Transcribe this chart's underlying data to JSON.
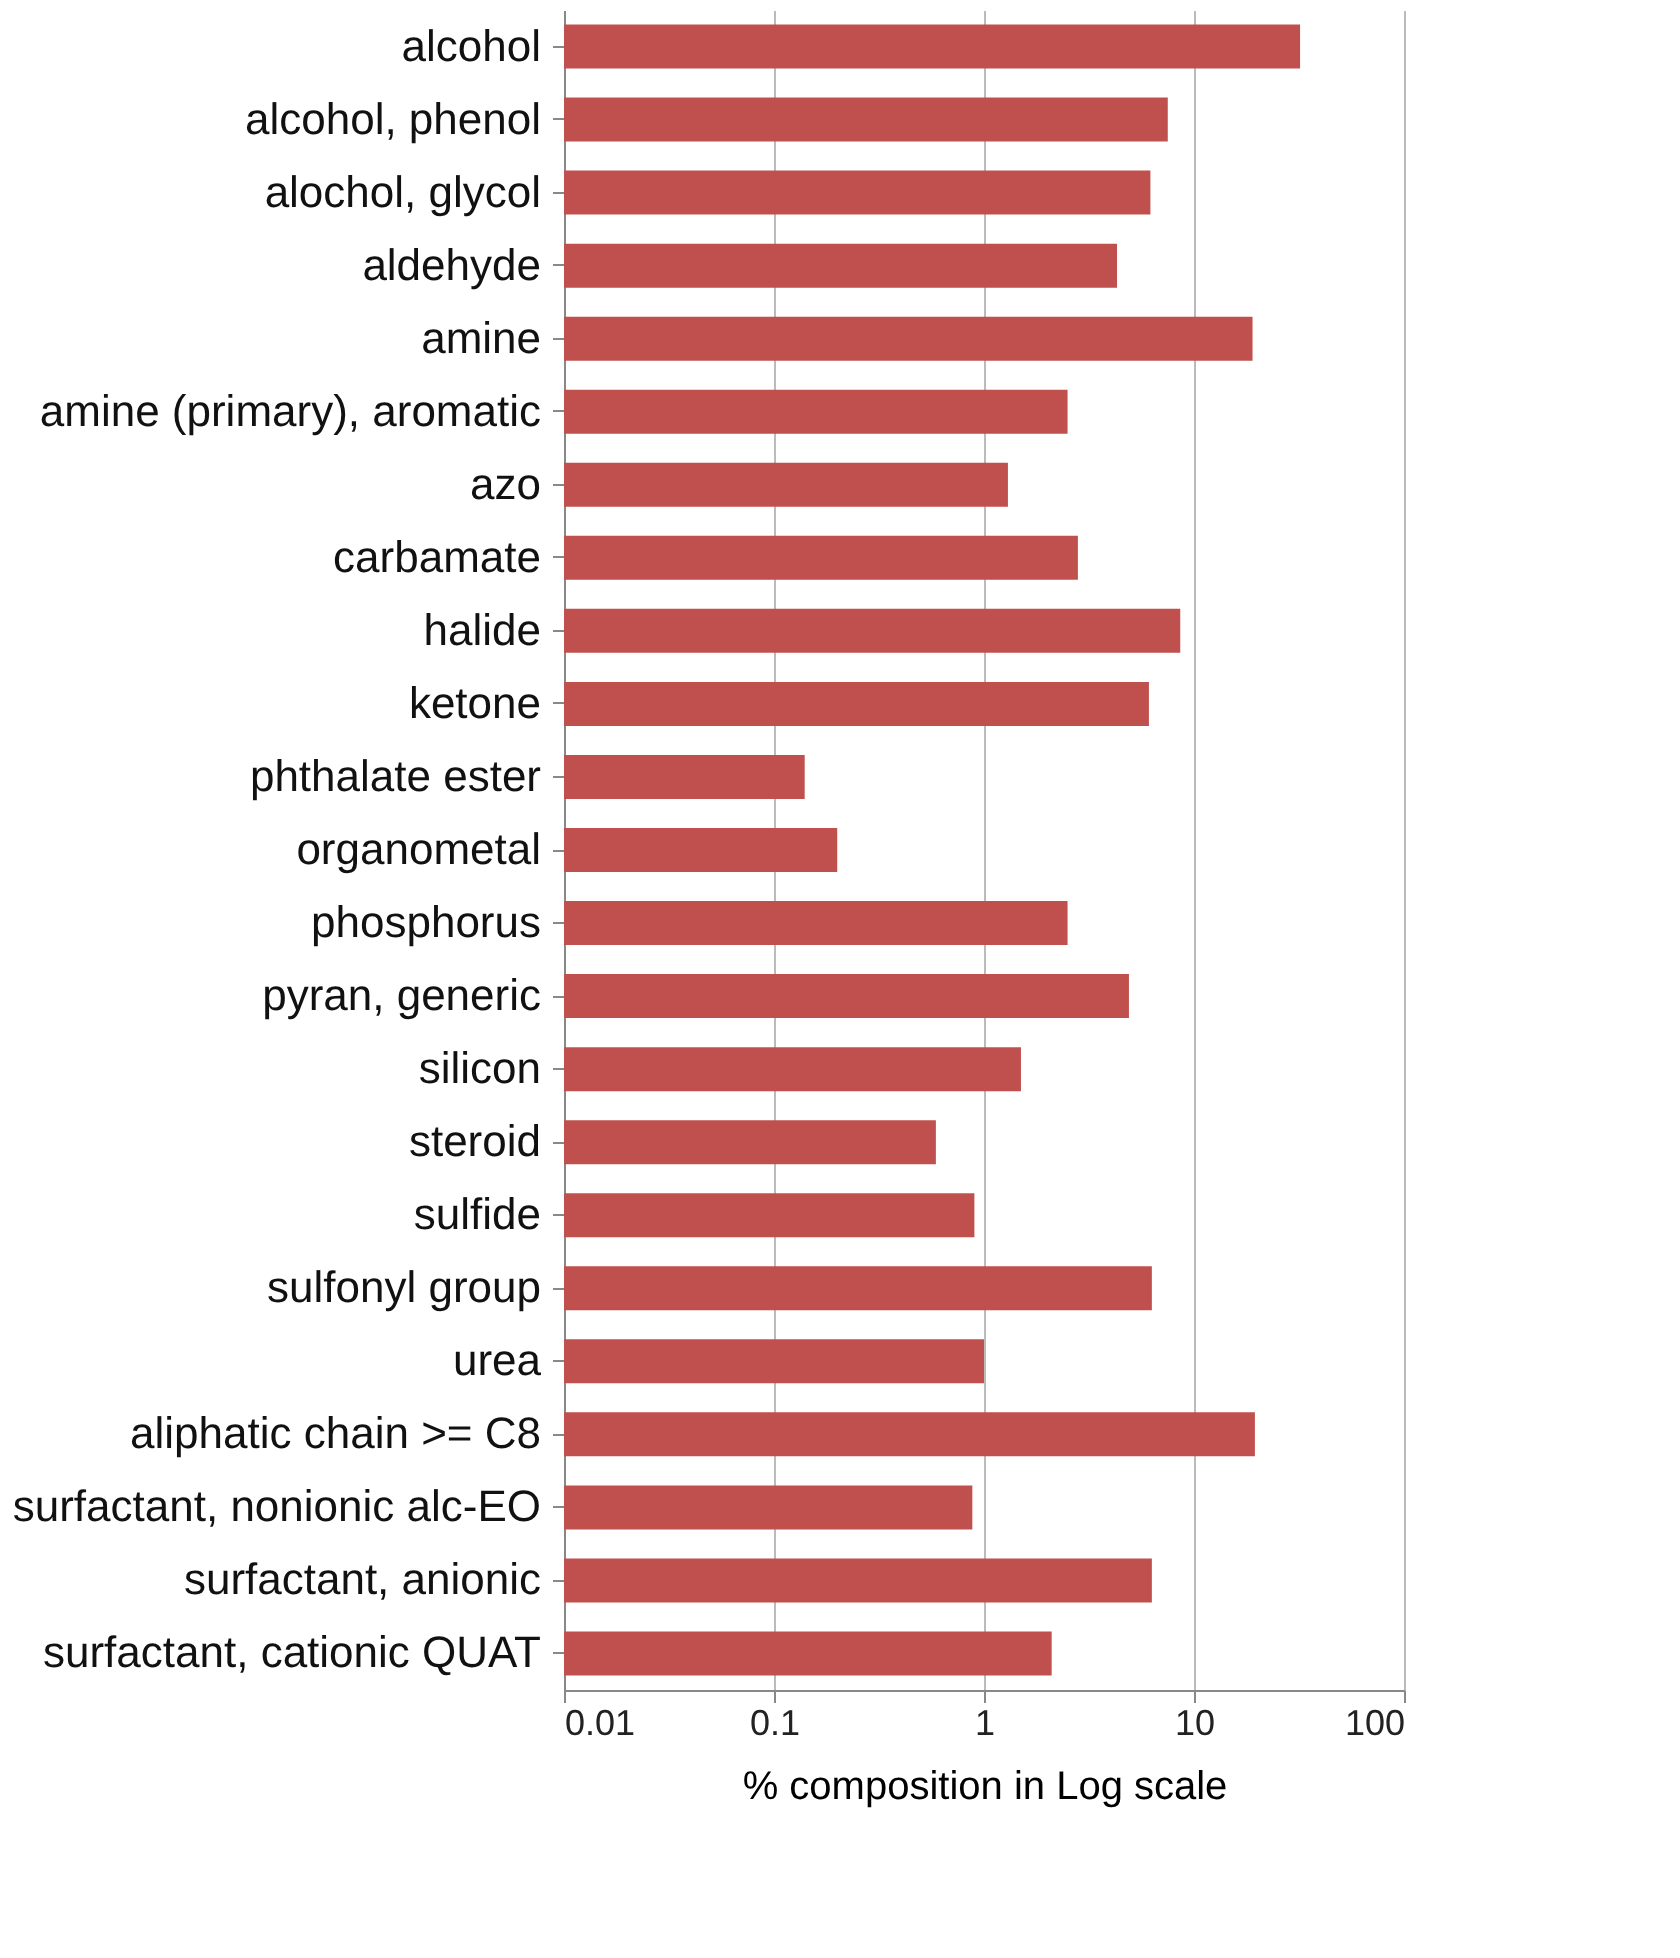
{
  "chart_data": {
    "type": "bar",
    "orientation": "horizontal",
    "log": "x",
    "grid": "x",
    "xlabel": "% composition in Log scale",
    "color": "#c0504d",
    "categories": [
      "alcohol",
      "alcohol, phenol",
      "alochol, glycol",
      "aldehyde",
      "amine",
      "amine (primary), aromatic",
      "azo",
      "carbamate",
      "halide",
      "ketone",
      "phthalate ester",
      "organometal",
      "phosphorus",
      "pyran, generic",
      "silicon",
      "steroid",
      "sulfide",
      "sulfonyl group",
      "urea",
      "aliphatic chain >= C8",
      "surfactant, nonionic alc-EO",
      "surfactant, anionic",
      "surfactant, cationic QUAT"
    ],
    "values": [
      32,
      7.5,
      6.2,
      4.3,
      19,
      2.5,
      1.3,
      2.8,
      8.6,
      6.1,
      0.14,
      0.2,
      2.5,
      4.9,
      1.5,
      0.59,
      0.9,
      6.3,
      1.0,
      19.5,
      0.88,
      6.3,
      2.1
    ],
    "xlim": [
      0.01,
      100
    ],
    "xticks": [
      0.01,
      0.1,
      1,
      10,
      100
    ]
  }
}
